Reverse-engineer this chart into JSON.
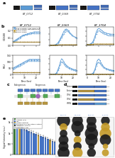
{
  "bg_color": "#ffffff",
  "subplot_titles": [
    "BT_0712",
    "BT_0369",
    "BT_3704"
  ],
  "timepoints": [
    0,
    1,
    2,
    3,
    4,
    5,
    6,
    7,
    8,
    9,
    10,
    11,
    12,
    13,
    14,
    15,
    16,
    17,
    18,
    19,
    20,
    21,
    22,
    23
  ],
  "bt_0712_od": [
    0.05,
    0.06,
    0.07,
    0.08,
    0.09,
    0.1,
    0.11,
    0.12,
    0.13,
    0.14,
    0.14,
    0.15,
    0.15,
    0.16,
    0.16,
    0.17,
    0.17,
    0.17,
    0.18,
    0.18,
    0.18,
    0.18,
    0.18,
    0.18
  ],
  "bt_0712_od2": [
    0.05,
    0.05,
    0.06,
    0.07,
    0.08,
    0.09,
    0.1,
    0.11,
    0.12,
    0.13,
    0.13,
    0.14,
    0.14,
    0.15,
    0.15,
    0.15,
    0.16,
    0.16,
    0.16,
    0.16,
    0.16,
    0.16,
    0.16,
    0.16
  ],
  "bt_0712_od_g1": [
    0.05,
    0.05,
    0.05,
    0.05,
    0.05,
    0.05,
    0.05,
    0.05,
    0.05,
    0.05,
    0.05,
    0.05,
    0.05,
    0.05,
    0.05,
    0.05,
    0.05,
    0.05,
    0.05,
    0.05,
    0.05,
    0.05,
    0.05,
    0.05
  ],
  "bt_0712_od_g2": [
    0.05,
    0.05,
    0.05,
    0.05,
    0.05,
    0.05,
    0.05,
    0.05,
    0.05,
    0.05,
    0.05,
    0.05,
    0.05,
    0.05,
    0.05,
    0.05,
    0.05,
    0.05,
    0.05,
    0.05,
    0.05,
    0.05,
    0.05,
    0.05
  ],
  "bt_0712_rlu": [
    50,
    55,
    60,
    65,
    70,
    75,
    80,
    85,
    90,
    95,
    100,
    105,
    110,
    115,
    120,
    120,
    120,
    120,
    120,
    120,
    120,
    120,
    120,
    120
  ],
  "bt_0712_rlu2": [
    40,
    45,
    50,
    55,
    60,
    65,
    70,
    75,
    80,
    85,
    90,
    95,
    100,
    105,
    110,
    110,
    110,
    110,
    110,
    110,
    110,
    110,
    110,
    110
  ],
  "bt_0712_rlu_g1": [
    20,
    20,
    20,
    20,
    20,
    20,
    20,
    20,
    20,
    20,
    20,
    20,
    20,
    20,
    20,
    20,
    20,
    20,
    20,
    20,
    20,
    20,
    20,
    20
  ],
  "bt_0712_rlu_g2": [
    15,
    15,
    15,
    15,
    15,
    15,
    15,
    15,
    15,
    15,
    15,
    15,
    15,
    15,
    15,
    15,
    15,
    15,
    15,
    15,
    15,
    15,
    15,
    15
  ],
  "bt_0369_od": [
    0.05,
    0.06,
    0.07,
    0.09,
    0.12,
    0.18,
    0.3,
    0.5,
    0.8,
    1.2,
    1.6,
    2.0,
    2.4,
    2.7,
    2.8,
    2.7,
    2.5,
    2.2,
    2.0,
    1.8,
    1.6,
    1.5,
    1.4,
    1.3
  ],
  "bt_0369_od2": [
    0.05,
    0.06,
    0.07,
    0.08,
    0.1,
    0.14,
    0.22,
    0.38,
    0.6,
    0.95,
    1.3,
    1.65,
    2.0,
    2.3,
    2.5,
    2.45,
    2.3,
    2.1,
    1.9,
    1.7,
    1.55,
    1.45,
    1.35,
    1.25
  ],
  "bt_0369_od_g1": [
    0.05,
    0.05,
    0.06,
    0.07,
    0.08,
    0.09,
    0.1,
    0.11,
    0.12,
    0.13,
    0.13,
    0.13,
    0.13,
    0.13,
    0.13,
    0.13,
    0.13,
    0.13,
    0.13,
    0.13,
    0.13,
    0.13,
    0.13,
    0.13
  ],
  "bt_0369_od_g2": [
    0.05,
    0.05,
    0.05,
    0.06,
    0.07,
    0.08,
    0.09,
    0.1,
    0.1,
    0.11,
    0.11,
    0.11,
    0.11,
    0.11,
    0.11,
    0.11,
    0.11,
    0.11,
    0.11,
    0.11,
    0.11,
    0.11,
    0.11,
    0.11
  ],
  "bt_0369_rlu": [
    100,
    120,
    150,
    200,
    400,
    800,
    2000,
    5000,
    8000,
    12000,
    15000,
    14000,
    12000,
    10000,
    9000,
    8000,
    7000,
    6500,
    6000,
    5500,
    5000,
    4800,
    4500,
    4000
  ],
  "bt_0369_rlu2": [
    80,
    100,
    130,
    170,
    350,
    700,
    1700,
    4000,
    6500,
    9500,
    12000,
    11500,
    10000,
    8500,
    7500,
    6800,
    6000,
    5500,
    5000,
    4500,
    4200,
    4000,
    3800,
    3500
  ],
  "bt_0369_rlu_g1": [
    80,
    80,
    80,
    80,
    80,
    80,
    80,
    90,
    100,
    110,
    120,
    120,
    120,
    120,
    120,
    120,
    120,
    120,
    120,
    120,
    120,
    120,
    120,
    120
  ],
  "bt_0369_rlu_g2": [
    60,
    60,
    60,
    60,
    60,
    60,
    60,
    70,
    80,
    85,
    90,
    90,
    90,
    90,
    90,
    90,
    90,
    90,
    90,
    90,
    90,
    90,
    90,
    90
  ],
  "bt_3704_od": [
    0.05,
    0.06,
    0.07,
    0.09,
    0.13,
    0.2,
    0.33,
    0.52,
    0.72,
    0.85,
    0.9,
    0.88,
    0.83,
    0.78,
    0.73,
    0.7,
    0.67,
    0.65,
    0.63,
    0.62,
    0.61,
    0.6,
    0.6,
    0.6
  ],
  "bt_3704_od2": [
    0.05,
    0.05,
    0.06,
    0.08,
    0.11,
    0.17,
    0.27,
    0.44,
    0.61,
    0.73,
    0.78,
    0.77,
    0.73,
    0.68,
    0.64,
    0.61,
    0.59,
    0.57,
    0.55,
    0.54,
    0.53,
    0.52,
    0.52,
    0.52
  ],
  "bt_3704_od_g1": [
    0.05,
    0.05,
    0.05,
    0.06,
    0.07,
    0.07,
    0.08,
    0.08,
    0.08,
    0.08,
    0.08,
    0.08,
    0.08,
    0.08,
    0.08,
    0.08,
    0.08,
    0.08,
    0.08,
    0.08,
    0.08,
    0.08,
    0.08,
    0.08
  ],
  "bt_3704_od_g2": [
    0.05,
    0.05,
    0.05,
    0.05,
    0.06,
    0.06,
    0.07,
    0.07,
    0.07,
    0.07,
    0.07,
    0.07,
    0.07,
    0.07,
    0.07,
    0.07,
    0.07,
    0.07,
    0.07,
    0.07,
    0.07,
    0.07,
    0.07,
    0.07
  ],
  "bt_3704_rlu": [
    80,
    90,
    110,
    150,
    250,
    500,
    1200,
    2500,
    4500,
    6000,
    6500,
    6000,
    5000,
    4200,
    3500,
    3000,
    2700,
    2500,
    2300,
    2100,
    2000,
    1900,
    1800,
    1700
  ],
  "bt_3704_rlu2": [
    60,
    70,
    90,
    120,
    200,
    400,
    1000,
    2000,
    3500,
    4800,
    5200,
    4800,
    4200,
    3500,
    3000,
    2600,
    2300,
    2100,
    2000,
    1800,
    1700,
    1600,
    1500,
    1400
  ],
  "bt_3704_rlu_g1": [
    50,
    50,
    50,
    50,
    50,
    50,
    50,
    60,
    70,
    80,
    80,
    80,
    80,
    80,
    80,
    80,
    80,
    80,
    80,
    80,
    80,
    80,
    80,
    80
  ],
  "bt_3704_rlu_g2": [
    40,
    40,
    40,
    40,
    40,
    40,
    40,
    45,
    55,
    60,
    60,
    60,
    60,
    60,
    60,
    60,
    60,
    60,
    60,
    60,
    60,
    60,
    60,
    60
  ],
  "bar_values": [
    1550,
    1450,
    1380,
    1300,
    1220,
    1160,
    1100,
    1060,
    1010,
    970,
    925,
    880,
    835,
    790,
    745,
    695,
    650,
    605,
    560,
    510,
    465,
    415,
    375,
    340,
    305,
    270,
    240,
    210,
    185,
    162,
    140,
    118,
    95,
    78,
    62,
    48,
    35,
    22,
    15,
    8,
    4,
    2
  ],
  "bar_colors_pattern": [
    "#3d7a3d",
    "#4472c4",
    "#b8963e",
    "#4472c4",
    "#4472c4",
    "#4472c4",
    "#4472c4",
    "#4472c4",
    "#4472c4",
    "#4472c4",
    "#b8963e",
    "#4472c4",
    "#4472c4",
    "#4472c4",
    "#4472c4",
    "#b8963e",
    "#4472c4",
    "#4472c4",
    "#4472c4",
    "#4472c4",
    "#4472c4",
    "#4472c4",
    "#b8963e",
    "#4472c4",
    "#4472c4",
    "#4472c4",
    "#4472c4",
    "#b8963e",
    "#4472c4",
    "#4472c4",
    "#b8963e",
    "#4472c4",
    "#4472c4",
    "#4472c4",
    "#333333",
    "#333333",
    "#4472c4",
    "#4472c4",
    "#333333",
    "#4472c4",
    "#333333",
    "#333333"
  ],
  "line_blue_solid": "#5b9bd5",
  "line_blue_dashed": "#2e75b6",
  "line_gold_solid": "#c49a28",
  "line_gold_dashed": "#8b6914",
  "dot_colors": [
    "#1a1a1a",
    "#1a1a1a",
    "#1a1a1a",
    "#1a1a1a",
    "#c49a28",
    "#1a1a1a",
    "#1a1a1a",
    "#c49a28",
    "#1a1a1a",
    "#1a1a1a",
    "#1a1a1a",
    "#c49a28",
    "#1a1a1a",
    "#c49a28",
    "#1a1a1a",
    "#1a1a1a",
    "#1a1a1a",
    "#1a1a1a",
    "#1a1a1a",
    "#c49a28",
    "#1a1a1a",
    "#c49a28",
    "#1a1a1a",
    "#c49a28"
  ],
  "dot_sizes": [
    180,
    120,
    100,
    80,
    60,
    160,
    100,
    80,
    60,
    40,
    180,
    140,
    100,
    60,
    160,
    130,
    100,
    70,
    40,
    30,
    150,
    110,
    80,
    50
  ],
  "inset_bg": "#f5f5f5",
  "inset_border": "#cccccc",
  "ylabel_od": "OD600",
  "ylabel_rlu": "RLU",
  "xlabel": "Time (hrs)",
  "panel_labels": [
    "a",
    "b",
    "c",
    "d",
    "e"
  ],
  "legend_items": [
    {
      "label": "Leader (SS)",
      "color": "#3d7a3d",
      "type": "patch"
    },
    {
      "label": "ORF",
      "color": "#4472c4",
      "type": "patch"
    },
    {
      "label": "Fusion partner",
      "color": "#b8963e",
      "type": "patch"
    },
    {
      "label": "Endogenous secretion system",
      "color": "#7aafe0",
      "type": "patch"
    },
    {
      "label": "Negative control",
      "color": "#333333",
      "type": "patch"
    },
    {
      "label": "Detection Anti",
      "color": "#888888",
      "type": "line"
    }
  ]
}
